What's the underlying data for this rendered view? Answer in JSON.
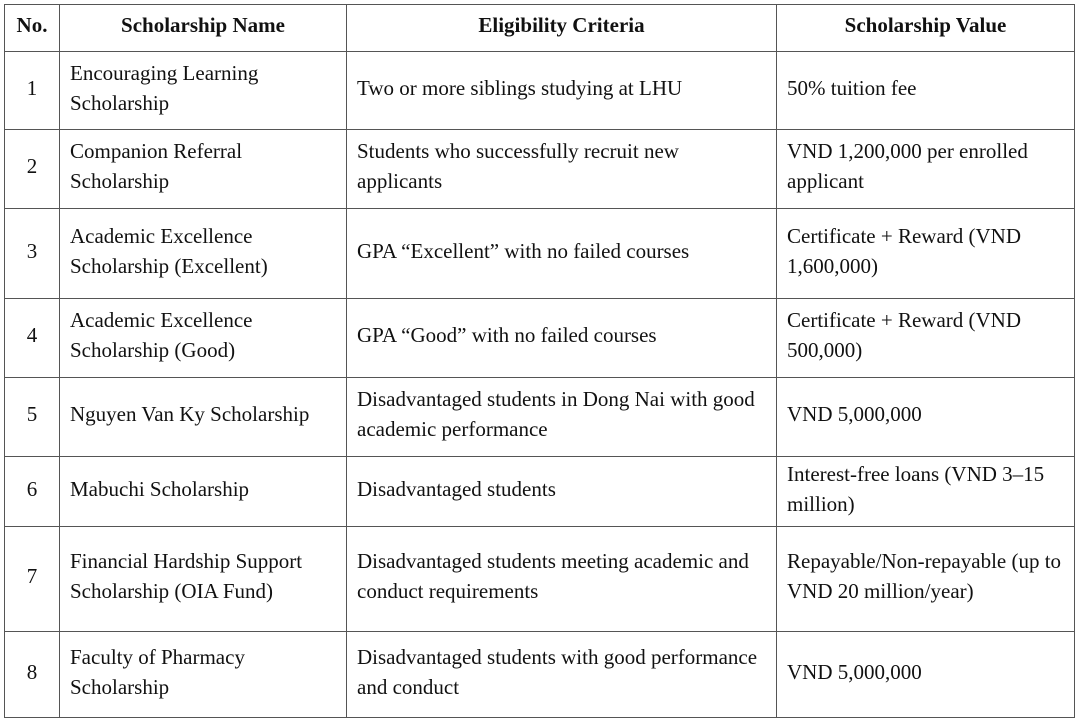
{
  "table": {
    "headers": [
      "No.",
      "Scholarship Name",
      "Eligibility Criteria",
      "Scholarship Value"
    ],
    "rows": [
      {
        "no": "1",
        "name": "Encouraging Learning Scholarship",
        "criteria": "Two or more siblings studying at LHU",
        "value": "50% tuition fee"
      },
      {
        "no": "2",
        "name": "Companion Referral Scholarship",
        "criteria": "Students who successfully recruit new applicants",
        "value": "VND 1,200,000 per enrolled applicant"
      },
      {
        "no": "3",
        "name": "Academic Excellence Scholarship (Excellent)",
        "criteria": "GPA “Excellent” with no failed courses",
        "value": "Certificate + Reward (VND 1,600,000)"
      },
      {
        "no": "4",
        "name": "Academic Excellence Scholarship (Good)",
        "criteria": "GPA “Good” with no failed courses",
        "value": "Certificate + Reward (VND 500,000)"
      },
      {
        "no": "5",
        "name": "Nguyen Van Ky Scholarship",
        "criteria": "Disadvantaged students in Dong Nai with good academic performance",
        "value": "VND 5,000,000"
      },
      {
        "no": "6",
        "name": "Mabuchi Scholarship",
        "criteria": "Disadvantaged students",
        "value": "Interest-free loans (VND 3–15 million)"
      },
      {
        "no": "7",
        "name": "Financial Hardship Support Scholarship (OIA Fund)",
        "criteria": "Disadvantaged students meeting academic and conduct requirements",
        "value": "Repayable/Non-repayable (up to VND 20 million/year)"
      },
      {
        "no": "8",
        "name": "Faculty of Pharmacy Scholarship",
        "criteria": "Disadvantaged students with good performance and conduct",
        "value": "VND 5,000,000"
      }
    ]
  }
}
